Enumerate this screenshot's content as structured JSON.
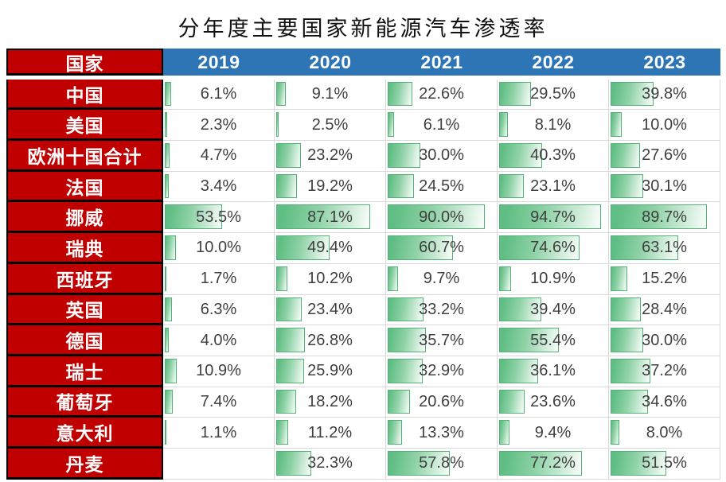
{
  "title": "分年度主要国家新能源汽车渗透率",
  "colors": {
    "country_header_bg": "#C00000",
    "year_header_bg": "#2E75B6",
    "bar_fill_green": "#5FBE83",
    "bar_border_green": "#52B277",
    "grid_line": "#D9D9D9",
    "value_text": "#3F3F3F",
    "header_text": "#FFFFFF"
  },
  "chart_data": {
    "type": "table",
    "title": "分年度主要国家新能源汽车渗透率",
    "corner_header": "国家",
    "categories": [
      "2019",
      "2020",
      "2021",
      "2022",
      "2023"
    ],
    "unit": "%",
    "value_scale": [
      0,
      100
    ],
    "bar_style": "green gradient data bars, width proportional to value (100% = full cell)",
    "series": [
      {
        "name": "中国",
        "values": [
          6.1,
          9.1,
          22.6,
          29.5,
          39.8
        ]
      },
      {
        "name": "美国",
        "values": [
          2.3,
          2.5,
          6.1,
          8.1,
          10.0
        ]
      },
      {
        "name": "欧洲十国合计",
        "values": [
          4.7,
          23.2,
          30.0,
          40.3,
          27.6
        ]
      },
      {
        "name": "法国",
        "values": [
          3.4,
          19.2,
          24.5,
          23.1,
          30.1
        ]
      },
      {
        "name": "挪威",
        "values": [
          53.5,
          87.1,
          90.0,
          94.7,
          89.7
        ]
      },
      {
        "name": "瑞典",
        "values": [
          10.0,
          49.4,
          60.7,
          74.6,
          63.1
        ]
      },
      {
        "name": "西班牙",
        "values": [
          1.7,
          10.2,
          9.7,
          10.9,
          15.2
        ]
      },
      {
        "name": "英国",
        "values": [
          6.3,
          23.4,
          33.2,
          39.4,
          28.4
        ]
      },
      {
        "name": "德国",
        "values": [
          4.0,
          26.8,
          35.7,
          55.4,
          30.0
        ]
      },
      {
        "name": "瑞士",
        "values": [
          10.9,
          25.9,
          32.9,
          36.1,
          37.2
        ]
      },
      {
        "name": "葡萄牙",
        "values": [
          7.4,
          18.2,
          20.6,
          23.6,
          34.6
        ]
      },
      {
        "name": "意大利",
        "values": [
          1.1,
          11.2,
          13.3,
          9.4,
          8.0
        ]
      },
      {
        "name": "丹麦",
        "values": [
          null,
          32.3,
          57.8,
          77.2,
          51.5
        ]
      }
    ]
  }
}
